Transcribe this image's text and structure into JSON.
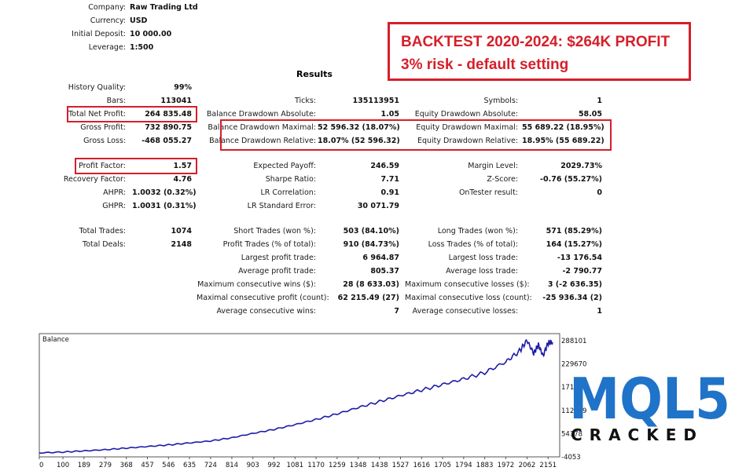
{
  "header": {
    "company_label": "Company:",
    "company_value": "Raw Trading Ltd",
    "currency_label": "Currency:",
    "currency_value": "USD",
    "deposit_label": "Initial Deposit:",
    "deposit_value": "10 000.00",
    "leverage_label": "Leverage:",
    "leverage_value": "1:500"
  },
  "banner": {
    "line1": "BACKTEST 2020-2024: $264K  PROFIT",
    "line2": "3% risk - default setting",
    "color": "#d51f2a"
  },
  "results_title": "Results",
  "rows": [
    {
      "c1l": "History Quality:",
      "c1v": "99%",
      "c2l": "",
      "c2v": "",
      "c3l": "",
      "c3v": ""
    },
    {
      "c1l": "Bars:",
      "c1v": "113041",
      "c2l": "Ticks:",
      "c2v": "135113951",
      "c3l": "Symbols:",
      "c3v": "1"
    },
    {
      "c1l": "Total Net Profit:",
      "c1v": "264 835.48",
      "c2l": "Balance Drawdown Absolute:",
      "c2v": "1.05",
      "c3l": "Equity Drawdown Absolute:",
      "c3v": "58.05"
    },
    {
      "c1l": "Gross Profit:",
      "c1v": "732 890.75",
      "c2l": "Balance Drawdown Maximal:",
      "c2v": "52 596.32 (18.07%)",
      "c3l": "Equity Drawdown Maximal:",
      "c3v": "55 689.22 (18.95%)"
    },
    {
      "c1l": "Gross Loss:",
      "c1v": "-468 055.27",
      "c2l": "Balance Drawdown Relative:",
      "c2v": "18.07% (52 596.32)",
      "c3l": "Equity Drawdown Relative:",
      "c3v": "18.95% (55 689.22)"
    },
    {
      "c1l": "Profit Factor:",
      "c1v": "1.57",
      "c2l": "Expected Payoff:",
      "c2v": "246.59",
      "c3l": "Margin Level:",
      "c3v": "2029.73%"
    },
    {
      "c1l": "Recovery Factor:",
      "c1v": "4.76",
      "c2l": "Sharpe Ratio:",
      "c2v": "7.71",
      "c3l": "Z-Score:",
      "c3v": "-0.76 (55.27%)"
    },
    {
      "c1l": "AHPR:",
      "c1v": "1.0032 (0.32%)",
      "c2l": "LR Correlation:",
      "c2v": "0.91",
      "c3l": "OnTester result:",
      "c3v": "0"
    },
    {
      "c1l": "GHPR:",
      "c1v": "1.0031 (0.31%)",
      "c2l": "LR Standard Error:",
      "c2v": "30 071.79",
      "c3l": "",
      "c3v": ""
    },
    {
      "c1l": "Total Trades:",
      "c1v": "1074",
      "c2l": "Short Trades (won %):",
      "c2v": "503 (84.10%)",
      "c3l": "Long Trades (won %):",
      "c3v": "571 (85.29%)"
    },
    {
      "c1l": "Total Deals:",
      "c1v": "2148",
      "c2l": "Profit Trades (% of total):",
      "c2v": "910 (84.73%)",
      "c3l": "Loss Trades (% of total):",
      "c3v": "164 (15.27%)"
    },
    {
      "c1l": "",
      "c1v": "",
      "c2l": "Largest profit trade:",
      "c2v": "6 964.87",
      "c3l": "Largest loss trade:",
      "c3v": "-13 176.54"
    },
    {
      "c1l": "",
      "c1v": "",
      "c2l": "Average profit trade:",
      "c2v": "805.37",
      "c3l": "Average loss trade:",
      "c3v": "-2 790.77"
    },
    {
      "c1l": "",
      "c1v": "",
      "c2l": "Maximum consecutive wins ($):",
      "c2v": "28 (8 633.03)",
      "c3l": "Maximum consecutive losses ($):",
      "c3v": "3 (-2 636.35)"
    },
    {
      "c1l": "",
      "c1v": "",
      "c2l": "Maximal consecutive profit (count):",
      "c2v": "62 215.49 (27)",
      "c3l": "Maximal consecutive loss (count):",
      "c3v": "-25 936.34 (2)"
    },
    {
      "c1l": "",
      "c1v": "",
      "c2l": "Average consecutive wins:",
      "c2v": "7",
      "c3l": "Average consecutive losses:",
      "c3v": "1"
    }
  ],
  "chart_data": {
    "type": "line",
    "title": "Balance",
    "xlabel": "",
    "ylabel": "",
    "x_ticks": [
      "0",
      "100",
      "189",
      "279",
      "368",
      "457",
      "546",
      "635",
      "724",
      "814",
      "903",
      "992",
      "1081",
      "1170",
      "1259",
      "1348",
      "1438",
      "1527",
      "1616",
      "1705",
      "1794",
      "1883",
      "1972",
      "2062",
      "2151"
    ],
    "y_ticks": [
      "288101",
      "229670",
      "171239",
      "112809",
      "54378",
      "-4053"
    ],
    "xlim": [
      0,
      2200
    ],
    "ylim": [
      -4053,
      306000
    ],
    "series": [
      {
        "name": "",
        "color": "#1c1ca8",
        "x": [
          0,
          100,
          189,
          279,
          368,
          457,
          546,
          635,
          724,
          814,
          903,
          992,
          1081,
          1170,
          1259,
          1348,
          1438,
          1527,
          1616,
          1705,
          1794,
          1883,
          1972,
          2030,
          2062,
          2090,
          2110,
          2130,
          2151,
          2170
        ],
        "y": [
          6000,
          8000,
          11000,
          14000,
          18000,
          22000,
          26000,
          31000,
          36000,
          44000,
          55000,
          65000,
          77000,
          90000,
          104000,
          120000,
          135000,
          150000,
          164000,
          178000,
          192000,
          208000,
          235000,
          262000,
          289000,
          256000,
          278000,
          250000,
          283000,
          284000
        ]
      }
    ]
  },
  "logo": {
    "text": "MQL5",
    "subtitle": "CRACKED",
    "color": "#1f73c8"
  }
}
